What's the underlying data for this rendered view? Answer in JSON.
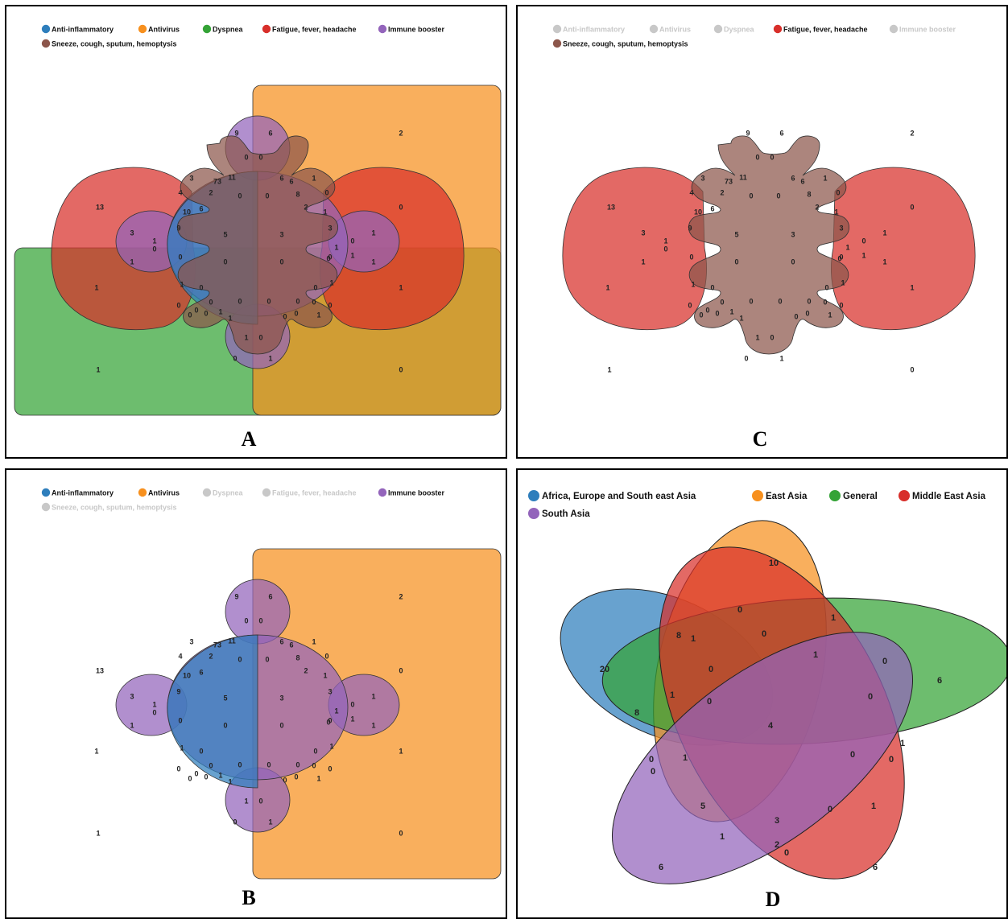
{
  "legend_venn6": [
    {
      "label": "Anti-inflammatory",
      "color": "#2e7ebc"
    },
    {
      "label": "Antivirus",
      "color": "#f7901e"
    },
    {
      "label": "Dyspnea",
      "color": "#34a336"
    },
    {
      "label": "Fatigue, fever, headache",
      "color": "#d82f2a"
    },
    {
      "label": "Immune booster",
      "color": "#9364bb"
    },
    {
      "label": "Sneeze, cough, sputum, hemoptysis",
      "color": "#8c564b"
    }
  ],
  "inactive_legend_color": "#c8c8c8",
  "panels": {
    "A": {
      "label": "A",
      "active": [
        true,
        true,
        true,
        true,
        true,
        true
      ]
    },
    "B": {
      "label": "B",
      "active": [
        true,
        true,
        false,
        false,
        true,
        false
      ]
    },
    "C": {
      "label": "C",
      "active": [
        false,
        false,
        false,
        true,
        false,
        true
      ]
    },
    "D": {
      "label": "D"
    }
  },
  "venn6_counts": [
    "9",
    "6",
    "2",
    "0",
    "0",
    "3",
    "73",
    "11",
    "6",
    "6",
    "1",
    "4",
    "2",
    "0",
    "0",
    "8",
    "0",
    "13",
    "10",
    "6",
    "2",
    "1",
    "0",
    "9",
    "3",
    "1",
    "3",
    "5",
    "3",
    "1",
    "1",
    "0",
    "0",
    "1",
    "1",
    "0",
    "0",
    "0",
    "0",
    "1",
    "1",
    "0",
    "0",
    "1",
    "1",
    "1",
    "0",
    "0",
    "0",
    "0",
    "0",
    "0",
    "0",
    "0",
    "0",
    "0",
    "0",
    "1",
    "1",
    "0",
    "0",
    "1",
    "1",
    "0",
    "0",
    "1",
    "0",
    "1"
  ],
  "legend_venn5": [
    {
      "label": "Africa, Europe and South east Asia",
      "color": "#2e7ebc"
    },
    {
      "label": "East Asia",
      "color": "#f7901e"
    },
    {
      "label": "General",
      "color": "#34a336"
    },
    {
      "label": "Middle East Asia",
      "color": "#d82f2a"
    },
    {
      "label": "South Asia",
      "color": "#9364bb"
    }
  ],
  "venn5_counts": [
    "10",
    "0",
    "1",
    "0",
    "8",
    "1",
    "0",
    "20",
    "1",
    "0",
    "0",
    "6",
    "1",
    "0",
    "8",
    "4",
    "0",
    "1",
    "0",
    "0",
    "1",
    "0",
    "5",
    "3",
    "0",
    "1",
    "1",
    "2",
    "0",
    "6",
    "6"
  ]
}
